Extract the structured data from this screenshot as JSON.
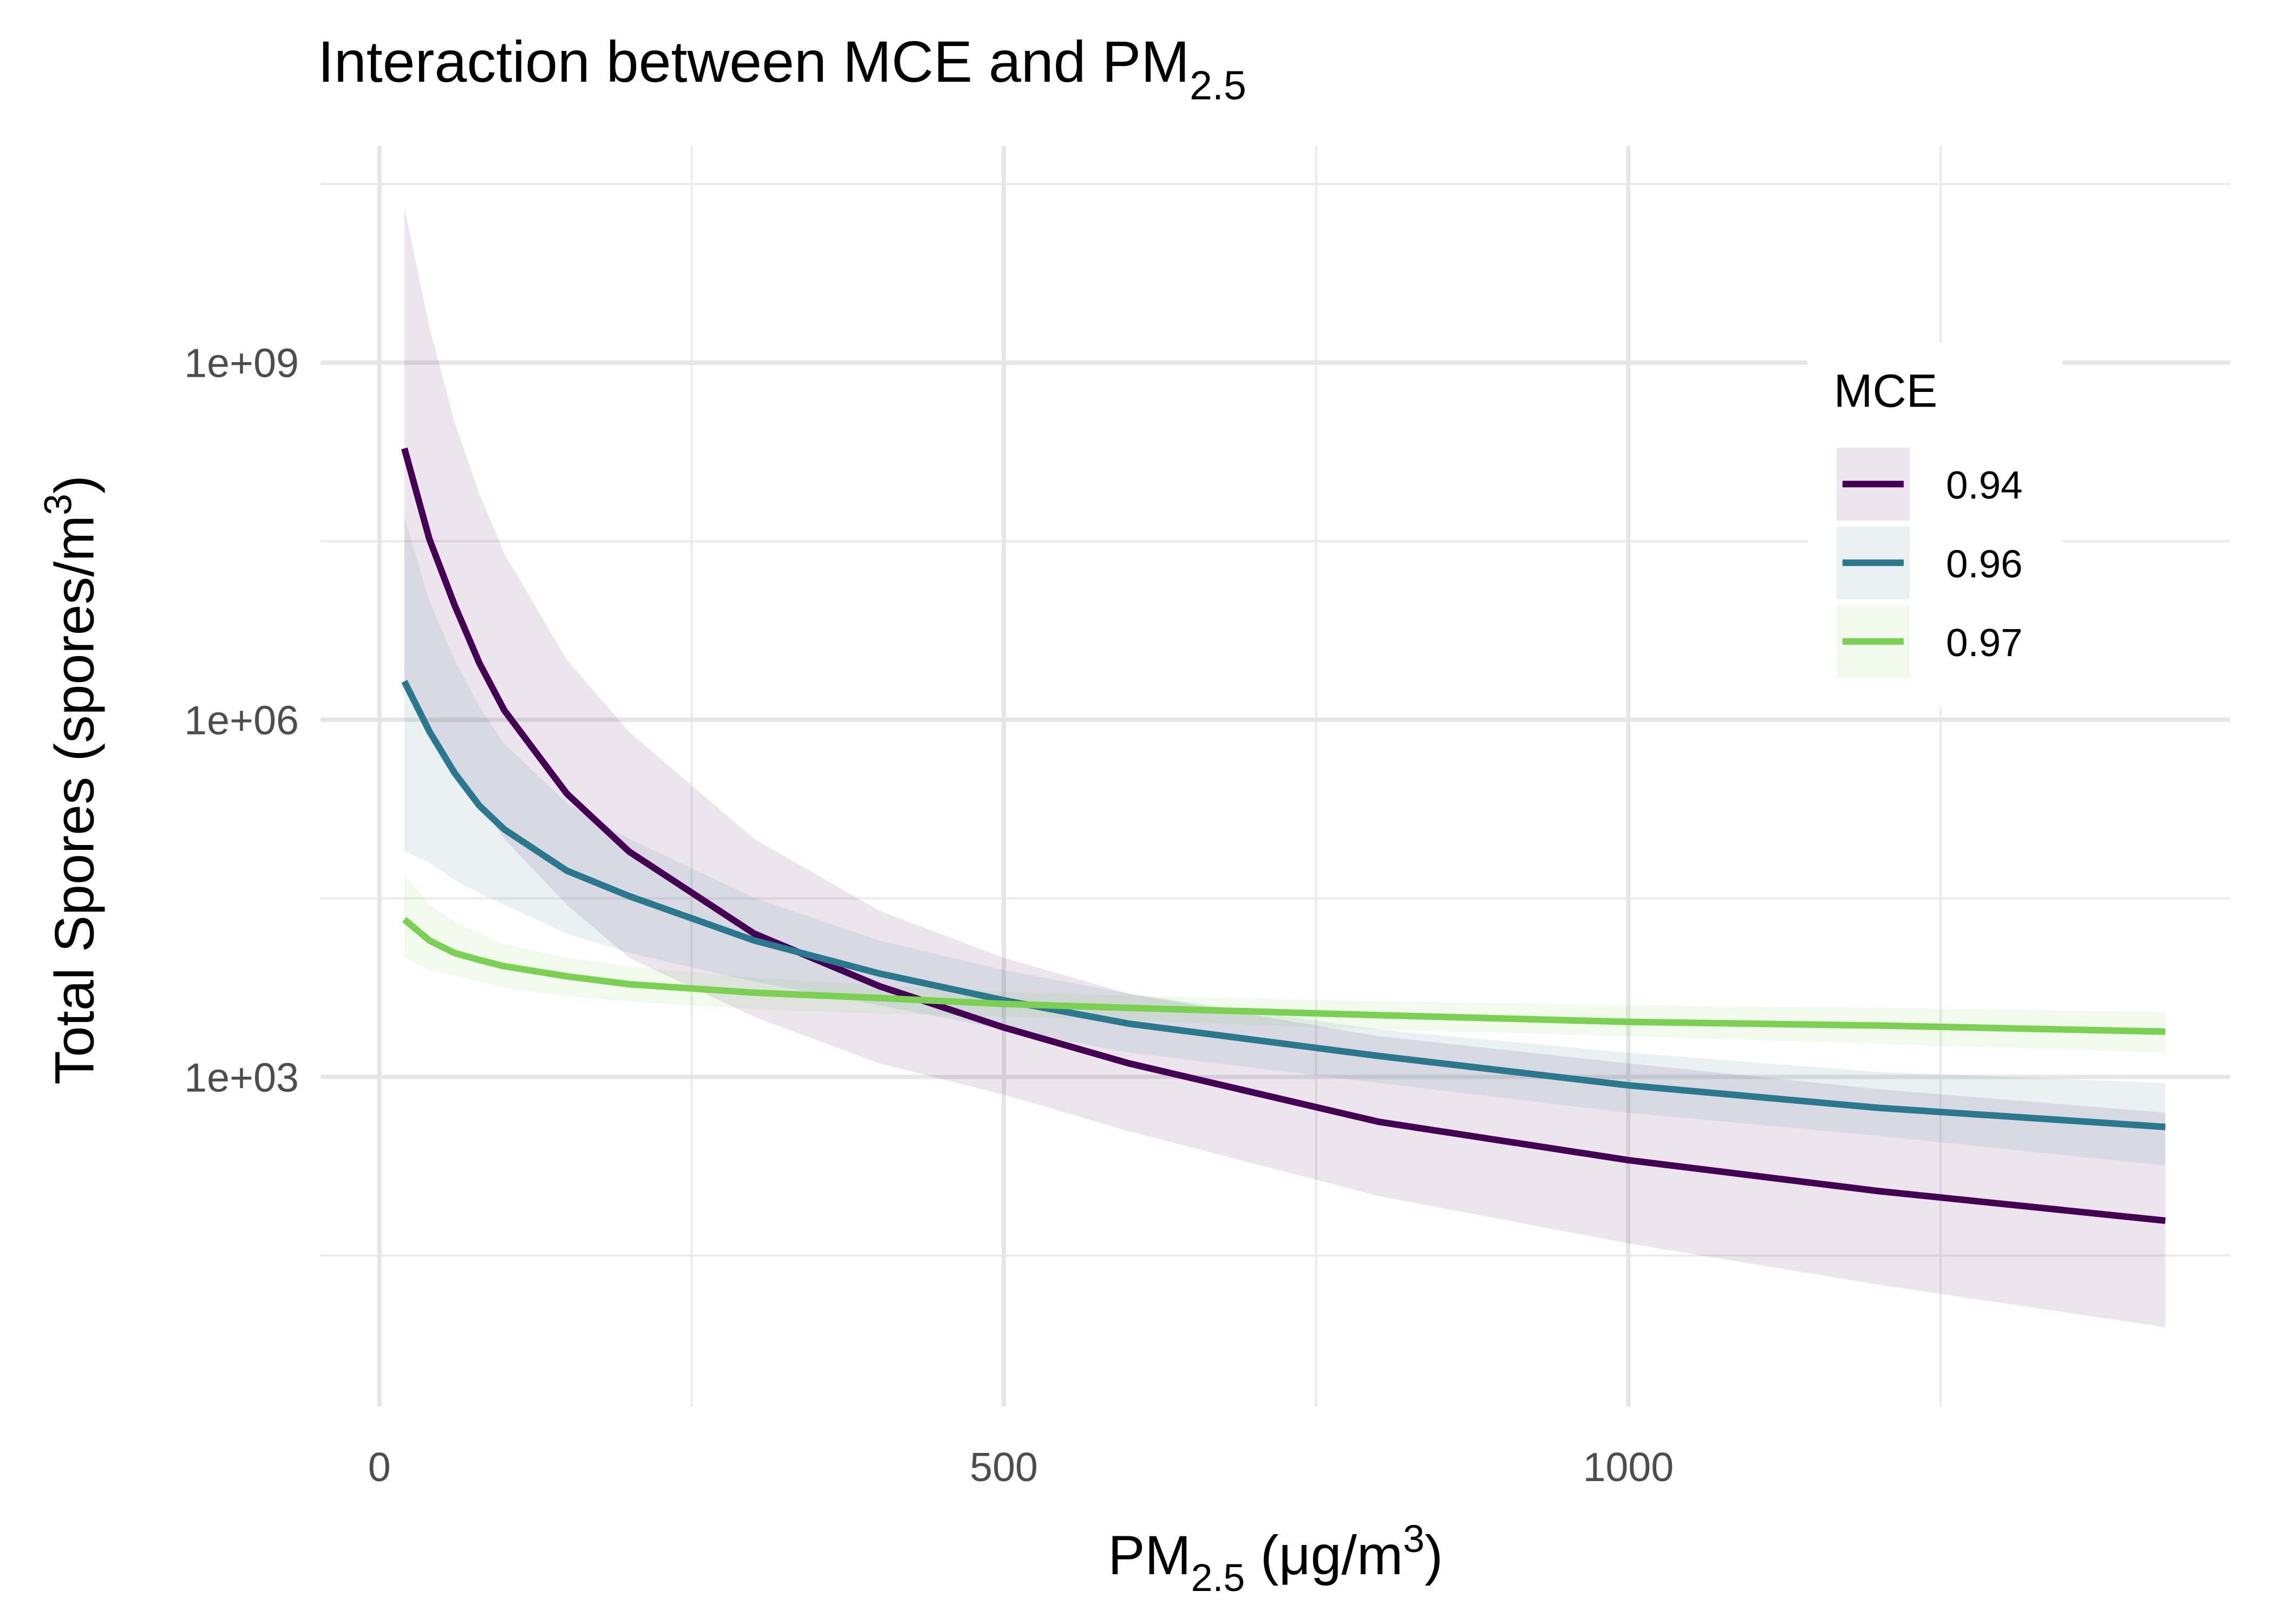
{
  "chart_data": {
    "type": "line",
    "title": [
      {
        "text": "Interaction between MCE and PM"
      },
      {
        "text": "2.5",
        "shift": "sub"
      }
    ],
    "x_label": [
      {
        "text": "PM"
      },
      {
        "text": "2.5",
        "shift": "sub"
      },
      {
        "text": " (μg/m"
      },
      {
        "text": "3",
        "shift": "super"
      },
      {
        "text": ")"
      }
    ],
    "y_label": [
      {
        "text": "Total Spores (spores/m"
      },
      {
        "text": "3",
        "shift": "super"
      },
      {
        "text": ")"
      }
    ],
    "legend_title": "MCE",
    "legend": "top-right",
    "log_y": true,
    "grid": true,
    "x": [
      20,
      40,
      60,
      80,
      100,
      150,
      200,
      300,
      400,
      500,
      600,
      800,
      1000,
      1200,
      1430
    ],
    "series": [
      {
        "name": "0.94",
        "color": "#440154",
        "values": [
          190000000.0,
          33000000.0,
          9300000.0,
          3000000.0,
          1200000.0,
          240000.0,
          78000.0,
          16000.0,
          5800,
          2600,
          1300,
          420,
          200,
          110,
          62
        ],
        "upper": [
          20000000000.0,
          2000000000.0,
          320000000.0,
          79000000.0,
          25000000.0,
          3200000.0,
          790000.0,
          100000.0,
          25000.0,
          10000.0,
          5000,
          2200,
          1300,
          790,
          500
        ],
        "lower": [
          2000000.0,
          790000.0,
          400000.0,
          200000.0,
          100000.0,
          28000.0,
          10000.0,
          3200,
          1300,
          710,
          350,
          100,
          40,
          18,
          7.9
        ]
      },
      {
        "name": "0.96",
        "color": "#2a788e",
        "values": [
          2100000.0,
          800000.0,
          360000.0,
          190000.0,
          120000.0,
          54000.0,
          33000.0,
          14000.0,
          7400,
          4400,
          2800,
          1500,
          850,
          550,
          380
        ],
        "upper": [
          50000000.0,
          10000000.0,
          3200000.0,
          1300000.0,
          630000.0,
          200000.0,
          100000.0,
          32000.0,
          14000.0,
          7900,
          5000,
          2500,
          1600,
          1100,
          890
        ],
        "lower": [
          79000.0,
          63000.0,
          45000.0,
          35000.0,
          28000.0,
          16000.0,
          11000.0,
          6300,
          4000,
          2500,
          1600,
          890,
          500,
          320,
          180
        ]
      },
      {
        "name": "0.97",
        "color": "#7ad151",
        "values": [
          21000.0,
          14000.0,
          11000.0,
          9600,
          8500,
          7000,
          6000,
          5100,
          4600,
          4100,
          3800,
          3300,
          2900,
          2700,
          2400
        ],
        "upper": [
          50000.0,
          28000.0,
          20000.0,
          16000.0,
          13000.0,
          10000.0,
          8500,
          6800,
          5900,
          5200,
          4800,
          4300,
          4000,
          3800,
          3500
        ],
        "lower": [
          10000.0,
          7900,
          7100,
          6300,
          5600,
          4800,
          4300,
          3700,
          3400,
          3200,
          3000,
          2500,
          2200,
          1900,
          1600
        ]
      }
    ],
    "xlim": [
      -47,
      1482
    ],
    "xticks": [
      0,
      500,
      1000
    ],
    "x_minor_grid": [
      250,
      750,
      1250
    ],
    "ylim": [
      1.7,
      66000000000.0
    ],
    "yticks": [
      {
        "value": 1000,
        "label": "1e+03"
      },
      {
        "value": 1000000,
        "label": "1e+06"
      },
      {
        "value": 1000000000,
        "label": "1e+09"
      }
    ],
    "y_minor_grid": [
      31.62,
      31623,
      31622777,
      31622776602
    ]
  }
}
